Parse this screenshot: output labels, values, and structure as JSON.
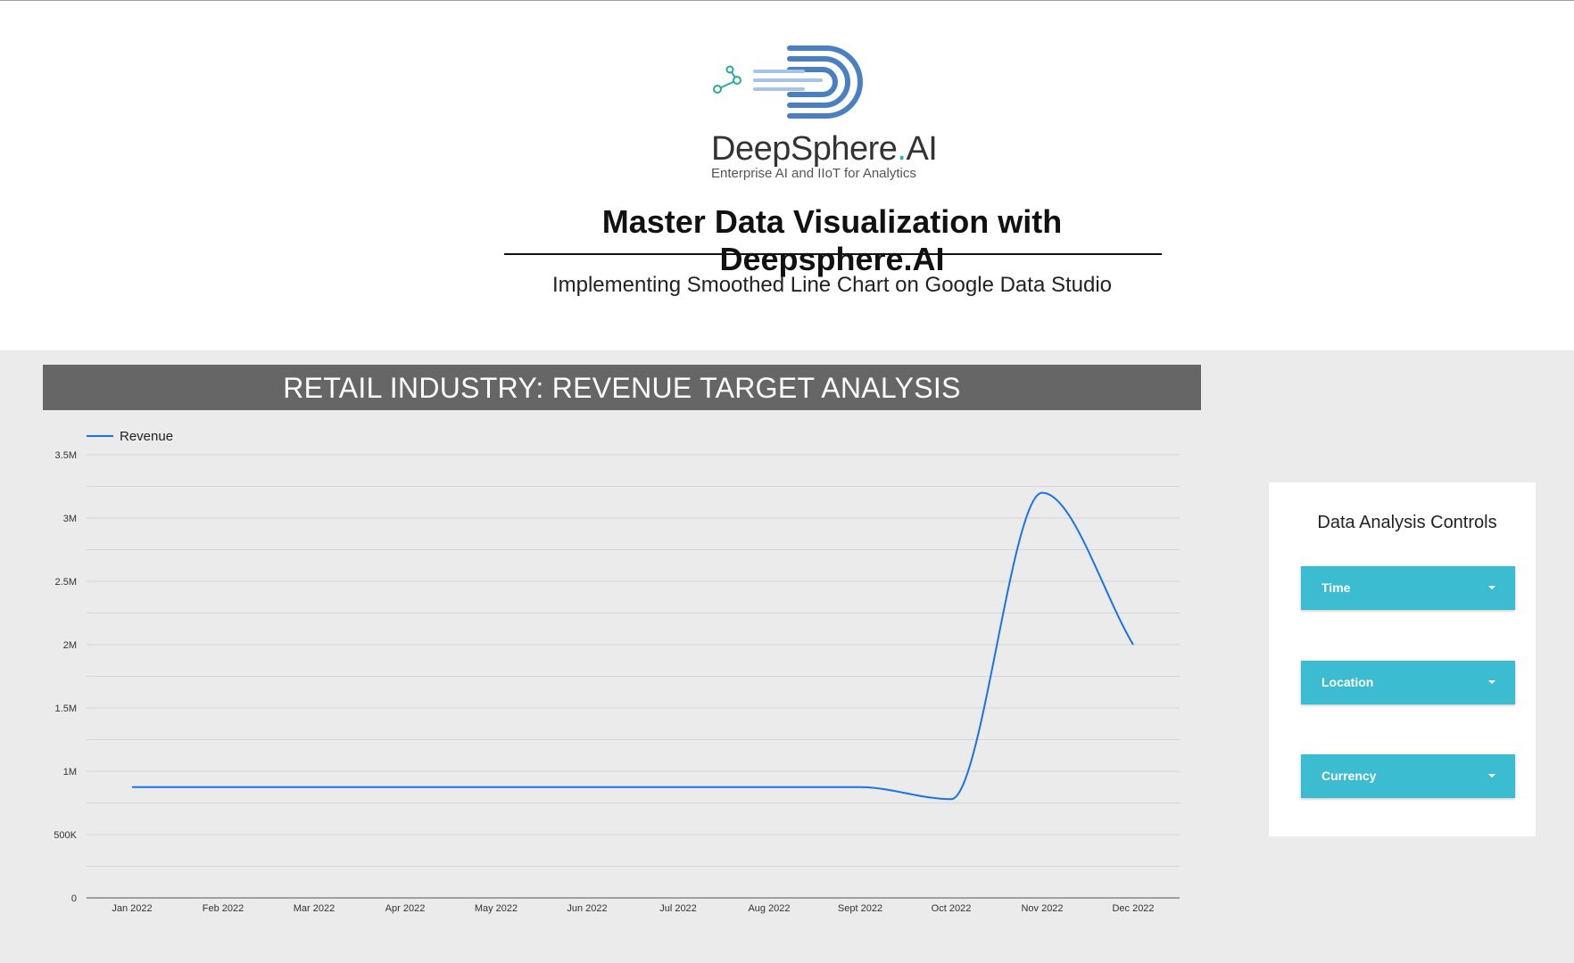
{
  "header": {
    "logo_name": "DeepSphere",
    "logo_dot": ".",
    "logo_suffix": "AI",
    "logo_tagline": "Enterprise AI and IIoT for Analytics",
    "title": "Master Data Visualization with Deepsphere.AI",
    "subtitle": "Implementing Smoothed Line Chart on Google Data Studio"
  },
  "colors": {
    "canvas_bg": "#ebebeb",
    "banner_bg": "#666666",
    "line": "#1a73e8",
    "control_bg": "#3bbcd1",
    "logo_blue": "#4a7fc1",
    "logo_teal": "#2aa9a0"
  },
  "chart_data": {
    "type": "line",
    "title": "RETAIL INDUSTRY: REVENUE TARGET ANALYSIS",
    "smoothed": true,
    "categories": [
      "Jan 2022",
      "Feb 2022",
      "Mar 2022",
      "Apr 2022",
      "May 2022",
      "Jun 2022",
      "Jul 2022",
      "Aug 2022",
      "Sept 2022",
      "Oct 2022",
      "Nov 2022",
      "Dec 2022"
    ],
    "series": [
      {
        "name": "Revenue",
        "values": [
          875000,
          875000,
          875000,
          875000,
          875000,
          875000,
          875000,
          875000,
          875000,
          780000,
          3200000,
          2000000
        ]
      }
    ],
    "ylim": [
      0,
      3500000
    ],
    "yticks": [
      0,
      500000,
      1000000,
      1500000,
      2000000,
      2500000,
      3000000,
      3500000
    ],
    "ytick_labels": [
      "0",
      "500K",
      "1M",
      "1.5M",
      "2M",
      "2.5M",
      "3M",
      "3.5M"
    ],
    "grid": true,
    "legend": "top-left"
  },
  "controls": {
    "title": "Data Analysis Controls",
    "items": [
      {
        "label": "Time"
      },
      {
        "label": "Location"
      },
      {
        "label": "Currency"
      }
    ]
  }
}
